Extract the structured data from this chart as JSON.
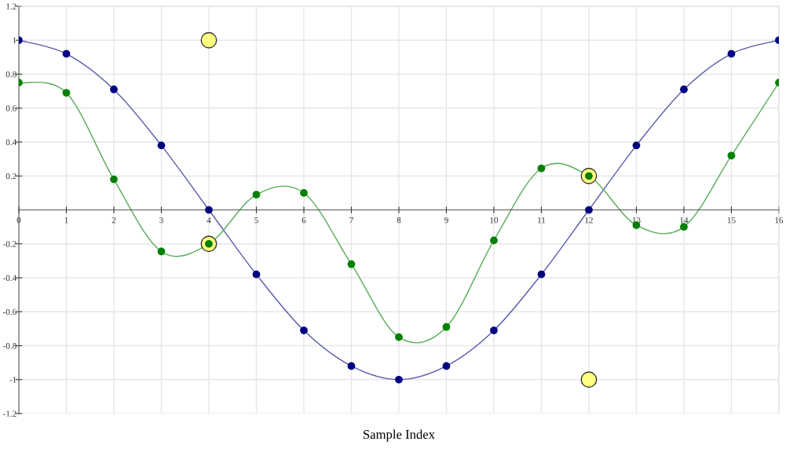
{
  "chart_data": {
    "type": "line",
    "xlabel": "Sample Index",
    "x": [
      0,
      1,
      2,
      3,
      4,
      5,
      6,
      7,
      8,
      9,
      10,
      11,
      12,
      13,
      14,
      15,
      16
    ],
    "xlim": [
      0,
      16
    ],
    "xticks": [
      0,
      1,
      2,
      3,
      4,
      5,
      6,
      7,
      8,
      9,
      10,
      11,
      12,
      13,
      14,
      15,
      16
    ],
    "ylim": [
      -1.2,
      1.2
    ],
    "yticks": [
      -1.2,
      -1,
      -0.8,
      -0.6,
      -0.4,
      -0.2,
      0.2,
      0.4,
      0.6,
      0.8,
      1,
      1.2
    ],
    "grid": true,
    "marker": "circle",
    "line_style": "solid",
    "legend": false,
    "series": [
      {
        "color": "#000080",
        "values": [
          1,
          0.92,
          0.71,
          0.38,
          0,
          -0.38,
          -0.71,
          -0.92,
          -1,
          -0.92,
          -0.71,
          -0.38,
          0,
          0.38,
          0.71,
          0.92,
          1
        ]
      },
      {
        "color": "#008000",
        "values": [
          0.75,
          0.69,
          0.18,
          -0.245,
          -0.2,
          0.09,
          0.1,
          -0.32,
          -0.75,
          -0.69,
          -0.18,
          0.245,
          0.2,
          -0.09,
          -0.1,
          0.32,
          0.75
        ]
      },
      {
        "type": "scatter",
        "color": "#ffff80",
        "values": [
          null,
          null,
          null,
          null,
          1,
          null,
          null,
          null,
          null,
          null,
          null,
          null,
          0.2,
          null,
          null,
          null,
          null
        ]
      },
      {
        "type": "scatter",
        "color": "#ffff80",
        "values": [
          null,
          null,
          null,
          null,
          -0.2,
          null,
          null,
          null,
          null,
          null,
          null,
          null,
          -1,
          null,
          null,
          null,
          null
        ]
      }
    ]
  }
}
